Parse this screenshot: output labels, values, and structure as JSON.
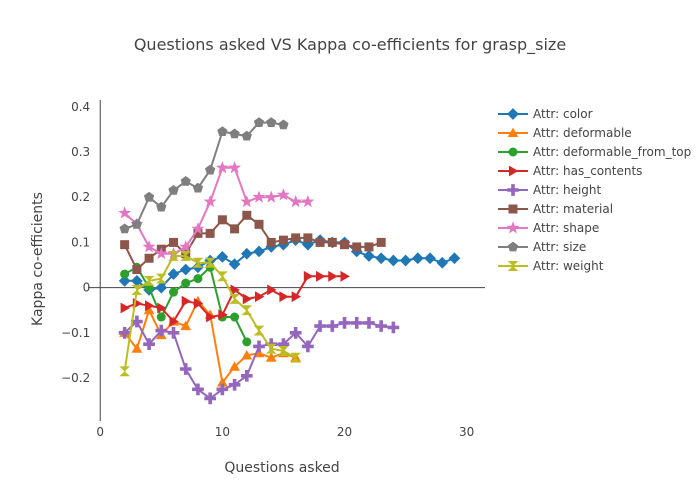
{
  "chart_data": {
    "type": "line",
    "title": "Questions asked VS Kappa co-efficients for grasp_size",
    "xlabel": "Questions asked",
    "ylabel": "Kappa co-efficients",
    "xlim": [
      -1,
      31.5
    ],
    "ylim": [
      -0.295,
      0.415
    ],
    "xticks": [
      0,
      10,
      20,
      30
    ],
    "yticks": [
      -0.2,
      -0.1,
      0,
      0.1,
      0.2,
      0.3,
      0.4
    ],
    "ytick_labels": [
      "−0.2",
      "−0.1",
      "0",
      "0.1",
      "0.2",
      "0.3",
      "0.4"
    ],
    "grid": false,
    "zero_line": true,
    "legend_position": "right",
    "series": [
      {
        "name": "Attr: color",
        "color": "#1f77b4",
        "marker": "diamond",
        "x": [
          2,
          3,
          4,
          5,
          6,
          7,
          8,
          9,
          10,
          11,
          12,
          13,
          14,
          15,
          16,
          17,
          18,
          19,
          20,
          21,
          22,
          23,
          24,
          25,
          26,
          27,
          28,
          29
        ],
        "y": [
          0.015,
          0.015,
          -0.005,
          0.0,
          0.03,
          0.04,
          0.045,
          0.06,
          0.068,
          0.052,
          0.075,
          0.08,
          0.09,
          0.095,
          0.105,
          0.095,
          0.105,
          0.1,
          0.1,
          0.08,
          0.07,
          0.065,
          0.06,
          0.06,
          0.065,
          0.065,
          0.055,
          0.065
        ]
      },
      {
        "name": "Attr: deformable",
        "color": "#ff7f0e",
        "marker": "triangle-up",
        "x": [
          2,
          3,
          4,
          5,
          6,
          7,
          8,
          9,
          10,
          11,
          12,
          13,
          14,
          15,
          16
        ],
        "y": [
          -0.1,
          -0.135,
          -0.05,
          -0.105,
          -0.075,
          -0.085,
          -0.03,
          -0.06,
          -0.21,
          -0.175,
          -0.15,
          -0.145,
          -0.155,
          -0.145,
          -0.155
        ]
      },
      {
        "name": "Attr: deformable_from_top",
        "color": "#2ca02c",
        "marker": "circle",
        "x": [
          2,
          3,
          4,
          5,
          6,
          7,
          8,
          9,
          10,
          11,
          12
        ],
        "y": [
          0.03,
          0.045,
          0.0,
          -0.065,
          -0.01,
          0.01,
          0.02,
          0.045,
          -0.065,
          -0.065,
          -0.12
        ]
      },
      {
        "name": "Attr: has_contents",
        "color": "#d62728",
        "marker": "triangle-right",
        "x": [
          2,
          3,
          4,
          5,
          6,
          7,
          8,
          9,
          10,
          11,
          12,
          13,
          14,
          15,
          16,
          17,
          18,
          19,
          20
        ],
        "y": [
          -0.045,
          -0.035,
          -0.04,
          -0.045,
          -0.075,
          -0.03,
          -0.035,
          -0.065,
          -0.06,
          -0.005,
          -0.025,
          -0.02,
          -0.005,
          -0.02,
          -0.02,
          0.025,
          0.025,
          0.025,
          0.025
        ]
      },
      {
        "name": "Attr: height",
        "color": "#9467bd",
        "marker": "cross",
        "x": [
          2,
          3,
          4,
          5,
          6,
          7,
          8,
          9,
          10,
          11,
          12,
          13,
          14,
          15,
          16,
          17,
          18,
          19,
          20,
          21,
          22,
          23,
          24
        ],
        "y": [
          -0.1,
          -0.075,
          -0.125,
          -0.095,
          -0.1,
          -0.18,
          -0.225,
          -0.245,
          -0.225,
          -0.215,
          -0.195,
          -0.13,
          -0.125,
          -0.125,
          -0.1,
          -0.13,
          -0.085,
          -0.085,
          -0.078,
          -0.078,
          -0.078,
          -0.085,
          -0.088
        ]
      },
      {
        "name": "Attr: material",
        "color": "#8c564b",
        "marker": "square",
        "x": [
          2,
          3,
          4,
          5,
          6,
          7,
          8,
          9,
          10,
          11,
          12,
          13,
          14,
          15,
          16,
          17,
          18,
          19,
          20,
          21,
          22,
          23
        ],
        "y": [
          0.095,
          0.04,
          0.065,
          0.085,
          0.1,
          0.075,
          0.12,
          0.12,
          0.15,
          0.13,
          0.16,
          0.14,
          0.1,
          0.105,
          0.11,
          0.11,
          0.1,
          0.1,
          0.095,
          0.09,
          0.09,
          0.1
        ]
      },
      {
        "name": "Attr: shape",
        "color": "#e377c2",
        "marker": "star",
        "x": [
          2,
          3,
          4,
          5,
          6,
          7,
          8,
          9,
          10,
          11,
          12,
          13,
          14,
          15,
          16,
          17
        ],
        "y": [
          0.165,
          0.14,
          0.09,
          0.075,
          0.075,
          0.09,
          0.13,
          0.19,
          0.265,
          0.265,
          0.19,
          0.2,
          0.2,
          0.205,
          0.19,
          0.19
        ]
      },
      {
        "name": "Attr: size",
        "color": "#7f7f7f",
        "marker": "pentagon",
        "x": [
          2,
          3,
          4,
          5,
          6,
          7,
          8,
          9,
          10,
          11,
          12,
          13,
          14,
          15
        ],
        "y": [
          0.13,
          0.14,
          0.2,
          0.178,
          0.215,
          0.235,
          0.22,
          0.26,
          0.345,
          0.34,
          0.335,
          0.365,
          0.365,
          0.36
        ]
      },
      {
        "name": "Attr: weight",
        "color": "#bcbd22",
        "marker": "hourglass",
        "x": [
          2,
          3,
          4,
          5,
          6,
          7,
          8,
          9,
          10,
          11,
          12,
          13,
          14,
          15,
          16
        ],
        "y": [
          -0.185,
          -0.005,
          0.015,
          0.02,
          0.07,
          0.07,
          0.055,
          0.055,
          0.025,
          -0.025,
          -0.05,
          -0.095,
          -0.135,
          -0.14,
          -0.155
        ]
      }
    ]
  }
}
